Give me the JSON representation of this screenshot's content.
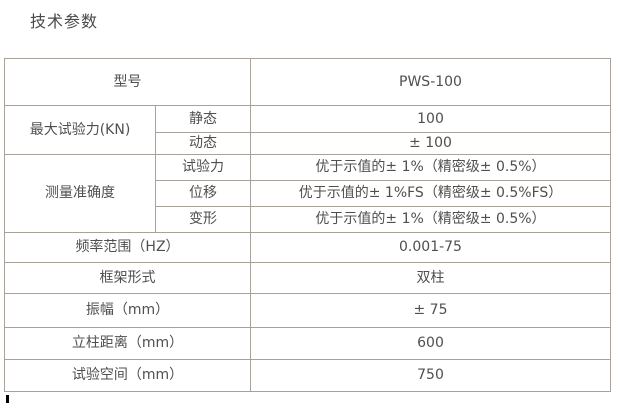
{
  "page": {
    "title": "技术参数"
  },
  "colors": {
    "border": "#a8a29a",
    "text": "#4f4f4f",
    "background": "#ffffff"
  },
  "table": {
    "model": {
      "label": "型号",
      "value": "PWS-100"
    },
    "max_force": {
      "label": "最大试验力(KN)",
      "static": {
        "label": "静态",
        "value": "100"
      },
      "dynamic": {
        "label": "动态",
        "value": "± 100"
      }
    },
    "accuracy": {
      "label": "测量准确度",
      "force": {
        "label": "试验力",
        "value": "优于示值的± 1%（精密级± 0.5%）"
      },
      "displacement": {
        "label": "位移",
        "value": "优于示值的± 1%FS（精密级± 0.5%FS）"
      },
      "deformation": {
        "label": "变形",
        "value": "优于示值的± 1%（精密级± 0.5%）"
      }
    },
    "frequency": {
      "label": "频率范围（HZ）",
      "value": "0.001-75"
    },
    "frame": {
      "label": "框架形式",
      "value": "双柱"
    },
    "amplitude": {
      "label": "振幅（mm）",
      "value": "± 75"
    },
    "column_distance": {
      "label": "立柱距离（mm）",
      "value": "600"
    },
    "test_space": {
      "label": "试验空间（mm）",
      "value": "750"
    }
  }
}
